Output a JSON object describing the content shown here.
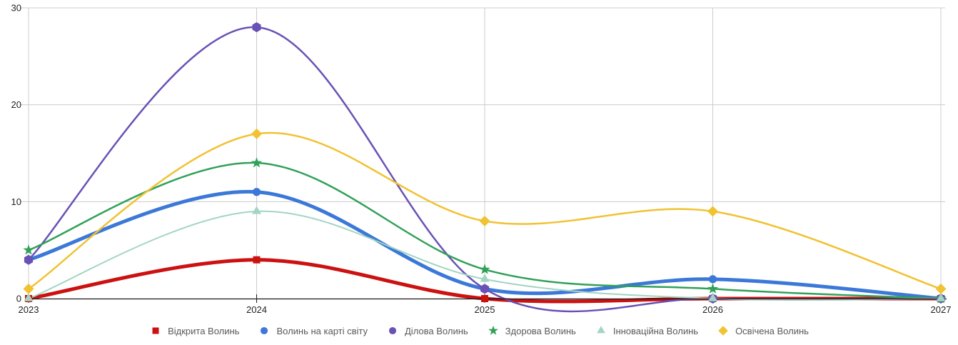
{
  "chart_data": {
    "type": "line",
    "curve": "smooth",
    "title": "",
    "xlabel": "",
    "ylabel": "",
    "x": [
      "2023",
      "2024",
      "2025",
      "2026",
      "2027"
    ],
    "yticks": [
      0,
      10,
      20,
      30
    ],
    "ylim": [
      0,
      30
    ],
    "grid": true,
    "legend_position": "bottom",
    "background_color": "#ffffff",
    "gridline_color": "#cccccc",
    "axis_color": "#1a1a1a",
    "tick_label_color": "#1f1f1f",
    "legend_text_color": "#595959",
    "series": [
      {
        "name": "Відкрита Волинь",
        "color": "#cc1111",
        "marker": "square",
        "legend_marker": "square",
        "line_width": 5,
        "values": [
          0,
          4,
          0,
          0,
          0
        ]
      },
      {
        "name": "Волинь на карті світу",
        "color": "#3b78d8",
        "marker": "circle",
        "legend_marker": "circle",
        "line_width": 5,
        "values": [
          4,
          11,
          1,
          2,
          0
        ]
      },
      {
        "name": "Ділова Волинь",
        "color": "#6a51b5",
        "marker": "hexagon",
        "legend_marker": "circle",
        "line_width": 2.5,
        "values": [
          4,
          28,
          1,
          0,
          0
        ]
      },
      {
        "name": "Здорова Волинь",
        "color": "#31a158",
        "marker": "star",
        "legend_marker": "star",
        "line_width": 2.5,
        "values": [
          5,
          14,
          3,
          1,
          0
        ]
      },
      {
        "name": "Інноваційна Волинь",
        "color": "#a2d5c2",
        "marker": "triangle",
        "legend_marker": "triangle",
        "line_width": 2,
        "values": [
          0,
          9,
          2,
          0,
          0
        ]
      },
      {
        "name": "Освічена Волинь",
        "color": "#f1c232",
        "marker": "diamond",
        "legend_marker": "diamond",
        "line_width": 2.5,
        "values": [
          1,
          17,
          8,
          9,
          1
        ]
      }
    ]
  }
}
